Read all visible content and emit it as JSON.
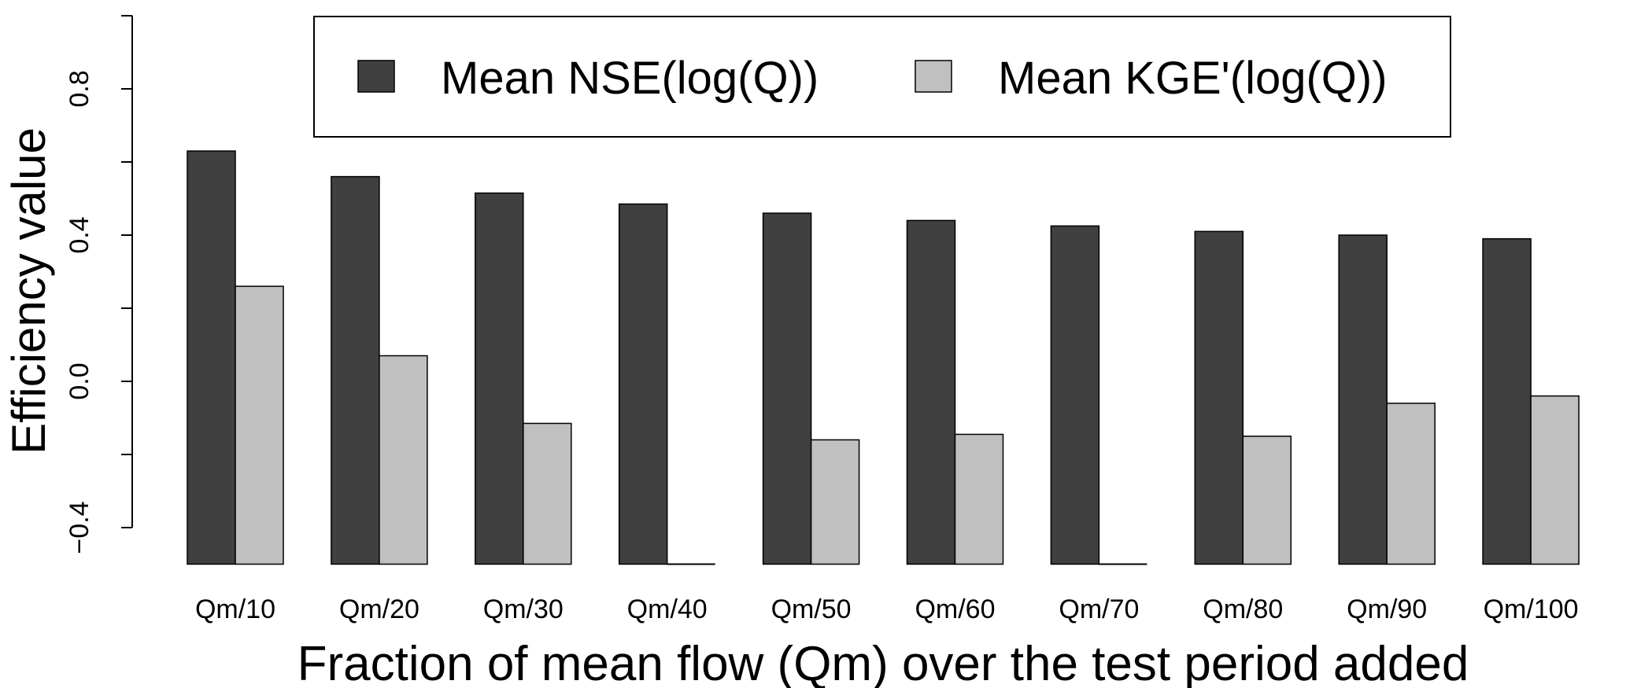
{
  "chart_data": {
    "type": "bar",
    "title": "",
    "xlabel": "Fraction of mean flow (Qm) over the test period added",
    "ylabel": "Efficiency value",
    "categories": [
      "Qm/10",
      "Qm/20",
      "Qm/30",
      "Qm/40",
      "Qm/50",
      "Qm/60",
      "Qm/70",
      "Qm/80",
      "Qm/90",
      "Qm/100"
    ],
    "series": [
      {
        "name": "Mean NSE(log(Q))",
        "color": "#404040",
        "values": [
          0.63,
          0.56,
          0.515,
          0.485,
          0.46,
          0.44,
          0.425,
          0.41,
          0.4,
          0.39
        ]
      },
      {
        "name": "Mean KGE'(log(Q))",
        "color": "#c0c0c0",
        "values": [
          0.26,
          0.07,
          -0.115,
          -0.5,
          -0.16,
          -0.145,
          -0.5,
          -0.15,
          -0.06,
          -0.04
        ]
      }
    ],
    "ylim": [
      -0.5,
      1.0
    ],
    "yticks": [
      "-0.4",
      "0.0",
      "0.4",
      "0.8"
    ],
    "grid": false,
    "legend_position": "top"
  }
}
